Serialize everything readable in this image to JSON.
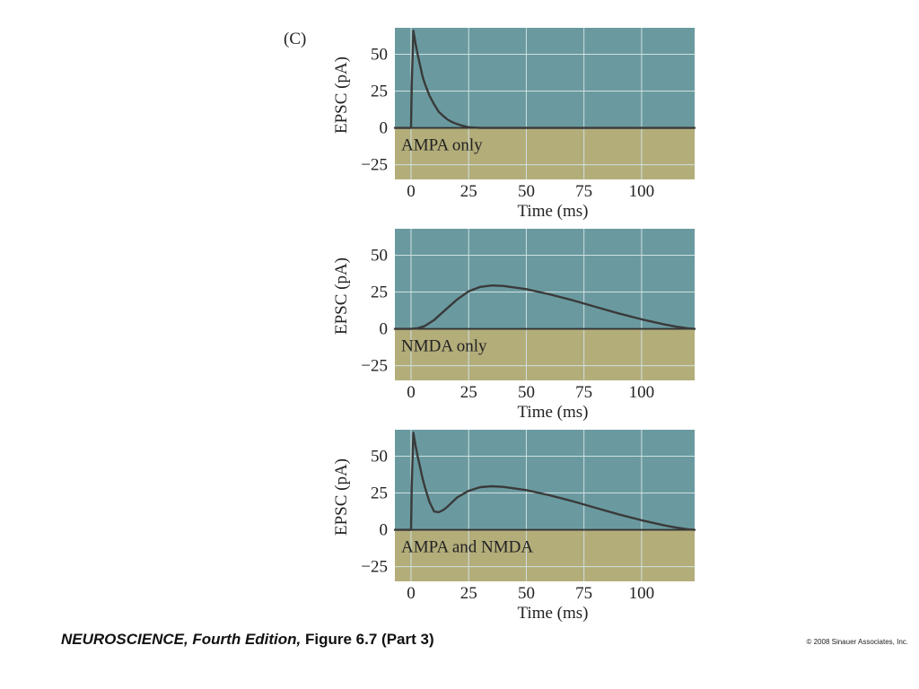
{
  "panel_label": "(C)",
  "footer": {
    "title_italic": "NEUROSCIENCE, Fourth Edition,",
    "figure_ref": "Figure 6.7 (Part 3)",
    "copyright": "© 2008 Sinauer Associates, Inc."
  },
  "colors": {
    "upper_bg": "#6a9aa0",
    "lower_bg": "#b3ad7a",
    "grid": "#cfe0df",
    "curve": "#3a3a3a",
    "zero_line": "#333333"
  },
  "chart_data": [
    {
      "type": "line",
      "annotation": "AMPA only",
      "xlabel": "Time (ms)",
      "ylabel": "EPSC (pA)",
      "xlim": [
        -7,
        123
      ],
      "ylim": [
        -35,
        68
      ],
      "xticks": [
        0,
        25,
        50,
        75,
        100
      ],
      "yticks": [
        50,
        25,
        0,
        -25
      ],
      "grid": true,
      "series": [
        {
          "x": [
            -7,
            0,
            0.3,
            1,
            2,
            3,
            4,
            5,
            6,
            8,
            10,
            12,
            14,
            16,
            18,
            20,
            22,
            25,
            30,
            40,
            60,
            80,
            100,
            123
          ],
          "y": [
            0,
            0,
            30,
            66,
            57,
            49,
            42,
            35,
            30,
            22,
            16,
            11,
            8,
            5.5,
            3.8,
            2.6,
            1.6,
            0.5,
            0,
            0,
            0,
            0,
            0,
            0
          ]
        }
      ]
    },
    {
      "type": "line",
      "annotation": "NMDA only",
      "xlabel": "Time (ms)",
      "ylabel": "EPSC (pA)",
      "xlim": [
        -7,
        123
      ],
      "ylim": [
        -35,
        68
      ],
      "xticks": [
        0,
        25,
        50,
        75,
        100
      ],
      "yticks": [
        50,
        25,
        0,
        -25
      ],
      "grid": true,
      "series": [
        {
          "x": [
            -7,
            0,
            3,
            6,
            10,
            15,
            20,
            25,
            30,
            35,
            40,
            50,
            60,
            70,
            80,
            90,
            100,
            110,
            115,
            120,
            123
          ],
          "y": [
            0,
            0,
            0.5,
            2,
            6,
            13,
            20,
            25.5,
            28.5,
            29.5,
            29.2,
            27,
            23.5,
            19.5,
            15,
            10.5,
            6.5,
            3,
            1.5,
            0.4,
            0
          ]
        }
      ]
    },
    {
      "type": "line",
      "annotation": "AMPA and NMDA",
      "xlabel": "Time (ms)",
      "ylabel": "EPSC (pA)",
      "xlim": [
        -7,
        123
      ],
      "ylim": [
        -35,
        68
      ],
      "xticks": [
        0,
        25,
        50,
        75,
        100
      ],
      "yticks": [
        50,
        25,
        0,
        -25
      ],
      "grid": true,
      "series": [
        {
          "x": [
            -7,
            0,
            0.3,
            1,
            2,
            3,
            4,
            5,
            6,
            8,
            10,
            12,
            14,
            16,
            20,
            25,
            30,
            35,
            40,
            50,
            60,
            70,
            80,
            90,
            100,
            110,
            115,
            120,
            123
          ],
          "y": [
            0,
            0,
            30,
            66,
            57,
            49,
            42,
            35,
            29,
            19,
            12.5,
            12,
            13.5,
            16,
            22,
            26.5,
            29,
            29.6,
            29.2,
            27,
            23.5,
            19.5,
            15,
            10.5,
            6.5,
            3,
            1.5,
            0.4,
            0
          ]
        }
      ]
    }
  ]
}
